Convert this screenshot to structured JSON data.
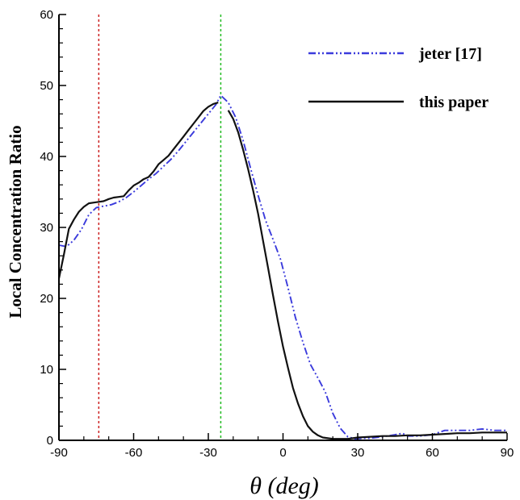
{
  "chart_data": {
    "type": "line",
    "title": "",
    "xlabel": "θ (deg)",
    "ylabel": "Local Concentration Ratio",
    "xlim": [
      -90,
      90
    ],
    "ylim": [
      0,
      60
    ],
    "xticks": [
      -90,
      -60,
      -30,
      0,
      30,
      60,
      90
    ],
    "yticks": [
      0,
      10,
      20,
      30,
      40,
      50,
      60
    ],
    "grid": false,
    "legend_position": "top-right",
    "reference_lines": [
      {
        "x": -74,
        "color": "#cc2222"
      },
      {
        "x": -25,
        "color": "#22bb22"
      }
    ],
    "series": [
      {
        "name": "jeter [17]",
        "color": "#3b3bdc",
        "style": "dash-dot-dot",
        "x": [
          -90,
          -87,
          -84,
          -81,
          -78,
          -75,
          -72,
          -69,
          -66,
          -63,
          -60,
          -57,
          -54,
          -51,
          -48,
          -45,
          -42,
          -39,
          -36,
          -33,
          -30,
          -27,
          -25,
          -22,
          -19,
          -16,
          -13,
          -10,
          -7,
          -4,
          -1,
          2,
          5,
          8,
          11,
          14,
          17,
          20,
          23,
          26,
          29,
          32,
          35,
          40,
          45,
          48,
          50,
          55,
          60,
          65,
          70,
          75,
          80,
          85,
          90
        ],
        "y": [
          27.5,
          27.3,
          28.2,
          29.7,
          31.8,
          32.8,
          33,
          33.2,
          33.6,
          34.2,
          35,
          35.9,
          36.8,
          37.6,
          38.6,
          39.6,
          40.8,
          42.1,
          43.4,
          44.7,
          46,
          47.3,
          48.6,
          47.6,
          45.5,
          42.2,
          38.3,
          34.5,
          31,
          28.3,
          25.5,
          21.5,
          17.3,
          13.8,
          10.7,
          8.8,
          6.8,
          3.8,
          1.7,
          0.5,
          0.2,
          0.3,
          0.3,
          0.5,
          0.8,
          1,
          0.6,
          0.6,
          0.8,
          1.4,
          1.4,
          1.4,
          1.6,
          1.4,
          1.4
        ]
      },
      {
        "name": "this paper",
        "color": "#111111",
        "style": "solid",
        "x": [
          -90,
          -88,
          -86,
          -84,
          -82,
          -80,
          -78,
          -76,
          -74,
          -72,
          -70,
          -68,
          -66,
          -64,
          -62,
          -60,
          -58,
          -56,
          -54,
          -52,
          -50,
          -48,
          -46,
          -44,
          -42,
          -40,
          -38,
          -36,
          -34,
          -32,
          -30,
          -28,
          -26,
          -25,
          -22,
          -20,
          -18,
          -16,
          -14,
          -12,
          -10,
          -8,
          -6,
          -4,
          -2,
          0,
          2,
          4,
          6,
          8,
          10,
          12,
          14,
          16,
          18,
          20,
          22,
          24,
          26,
          28,
          30,
          35,
          40,
          45,
          50,
          55,
          60,
          65,
          70,
          75,
          80,
          85,
          90
        ],
        "y": [
          22.8,
          26.2,
          29.8,
          31.1,
          32.2,
          32.9,
          33.4,
          33.5,
          33.6,
          33.7,
          34,
          34.2,
          34.3,
          34.4,
          35.2,
          35.9,
          36.3,
          36.8,
          37.1,
          37.9,
          38.9,
          39.5,
          40.1,
          41,
          41.9,
          42.8,
          43.7,
          44.6,
          45.5,
          46.4,
          47,
          47.4,
          47.6,
          null,
          46.5,
          45.3,
          43.4,
          40.9,
          38.2,
          35.2,
          31.9,
          28.1,
          24.3,
          20.4,
          16.7,
          13.2,
          10.2,
          7.4,
          5.2,
          3.4,
          2,
          1.2,
          0.7,
          0.4,
          0.3,
          0.2,
          0.2,
          0.2,
          0.2,
          0.3,
          0.4,
          0.5,
          0.6,
          0.6,
          0.7,
          0.7,
          0.8,
          0.9,
          1,
          1,
          1.1,
          1.1,
          1.1
        ]
      }
    ]
  }
}
